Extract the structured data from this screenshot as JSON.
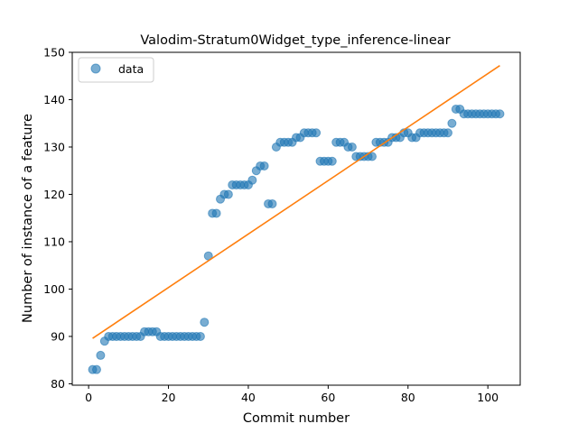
{
  "chart_data": {
    "type": "scatter",
    "title": "Valodim-Stratum0Widget_type_inference-linear",
    "xlabel": "Commit number",
    "ylabel": "Number of instance of a feature",
    "xlim": [
      -4.1,
      108.1
    ],
    "ylim": [
      79.7,
      150.0
    ],
    "xticks": [
      0,
      20,
      40,
      60,
      80,
      100
    ],
    "yticks": [
      80,
      90,
      100,
      110,
      120,
      130,
      140,
      150
    ],
    "grid": false,
    "legend": {
      "position": "upper-left",
      "entries": [
        "data"
      ]
    },
    "colors": {
      "data": "#1f77b4",
      "fit": "#ff7f0e"
    },
    "series": [
      {
        "name": "data",
        "kind": "scatter",
        "x": [
          1,
          2,
          3,
          4,
          5,
          6,
          7,
          8,
          9,
          10,
          11,
          12,
          13,
          14,
          15,
          16,
          17,
          18,
          19,
          20,
          21,
          22,
          23,
          24,
          25,
          26,
          27,
          28,
          29,
          30,
          31,
          32,
          33,
          34,
          35,
          36,
          37,
          38,
          39,
          40,
          41,
          42,
          43,
          44,
          45,
          46,
          47,
          48,
          49,
          50,
          51,
          52,
          53,
          54,
          55,
          56,
          57,
          58,
          59,
          60,
          61,
          62,
          63,
          64,
          65,
          66,
          67,
          68,
          69,
          70,
          71,
          72,
          73,
          74,
          75,
          76,
          77,
          78,
          79,
          80,
          81,
          82,
          83,
          84,
          85,
          86,
          87,
          88,
          89,
          90,
          91,
          92,
          93,
          94,
          95,
          96,
          97,
          98,
          99,
          100,
          101,
          102,
          103
        ],
        "y": [
          83,
          83,
          86,
          89,
          90,
          90,
          90,
          90,
          90,
          90,
          90,
          90,
          90,
          91,
          91,
          91,
          91,
          90,
          90,
          90,
          90,
          90,
          90,
          90,
          90,
          90,
          90,
          90,
          93,
          107,
          116,
          116,
          119,
          120,
          120,
          122,
          122,
          122,
          122,
          122,
          123,
          125,
          126,
          126,
          118,
          118,
          130,
          131,
          131,
          131,
          131,
          132,
          132,
          133,
          133,
          133,
          133,
          127,
          127,
          127,
          127,
          131,
          131,
          131,
          130,
          130,
          128,
          128,
          128,
          128,
          128,
          131,
          131,
          131,
          131,
          132,
          132,
          132,
          133,
          133,
          132,
          132,
          133,
          133,
          133,
          133,
          133,
          133,
          133,
          133,
          135,
          138,
          138,
          137,
          137,
          137,
          137,
          137,
          137,
          137,
          137,
          137,
          137
        ]
      },
      {
        "name": "",
        "kind": "line",
        "x": [
          1,
          103
        ],
        "y": [
          89.6,
          147.2
        ]
      }
    ]
  }
}
